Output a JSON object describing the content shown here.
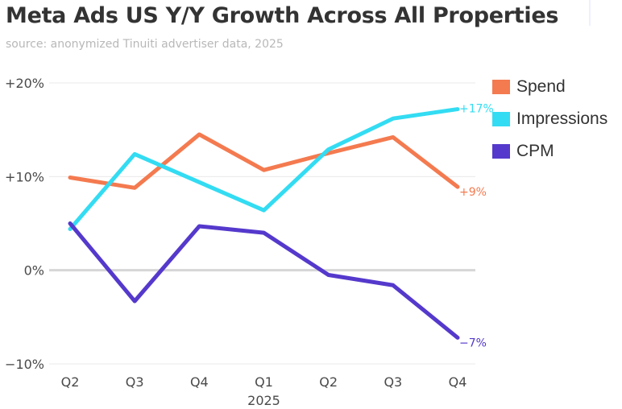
{
  "chart_data": {
    "type": "line",
    "title": "Meta Ads US Y/Y Growth Across All Properties",
    "subtitle": "source: anonymized Tinuiti advertiser data, 2025",
    "categories": [
      "Q2",
      "Q3",
      "Q4",
      "Q1",
      "Q2",
      "Q3",
      "Q4"
    ],
    "category_group": {
      "label": "2025",
      "index": 3
    },
    "yticks": [
      {
        "value": 20,
        "label": "+20%"
      },
      {
        "value": 10,
        "label": "+10%"
      },
      {
        "value": 0,
        "label": "0%"
      },
      {
        "value": -10,
        "label": "−10%"
      }
    ],
    "ylim": [
      -10,
      20
    ],
    "grid": true,
    "legend_position": "right",
    "series": [
      {
        "name": "Spend",
        "color": "#f47a4f",
        "values": [
          9.9,
          8.8,
          14.5,
          10.7,
          12.5,
          14.2,
          8.9
        ],
        "end_label": "+9%"
      },
      {
        "name": "Impressions",
        "color": "#33dcf2",
        "values": [
          4.4,
          12.4,
          9.4,
          6.4,
          12.9,
          16.2,
          17.2
        ],
        "end_label": "+17%"
      },
      {
        "name": "CPM",
        "color": "#5539cc",
        "values": [
          5.0,
          -3.3,
          4.7,
          4.0,
          -0.5,
          -1.6,
          -7.2
        ],
        "end_label": "−7%"
      }
    ]
  }
}
